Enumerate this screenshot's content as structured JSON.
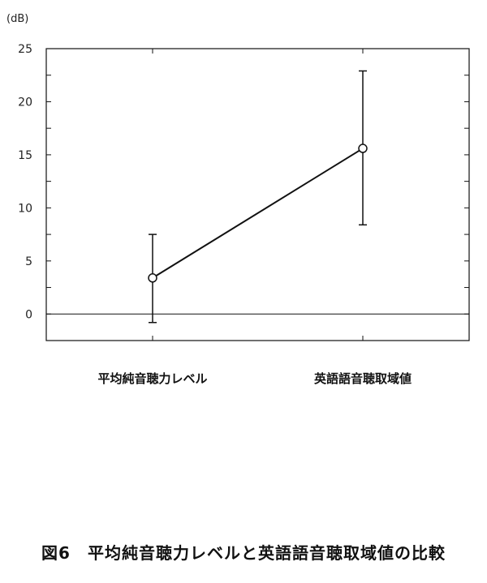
{
  "chart_data": {
    "type": "line",
    "unit_label": "(dB)",
    "categories": [
      "平均純音聴力レベル",
      "英語語音聴取域値"
    ],
    "values": [
      3.4,
      15.6
    ],
    "error_low": [
      -0.8,
      8.4
    ],
    "error_high": [
      7.5,
      22.9
    ],
    "yticks": [
      0,
      5,
      10,
      15,
      20,
      25
    ],
    "ylim": [
      -2.5,
      25
    ],
    "grid": false,
    "legend": "none"
  },
  "caption": "図6　平均純音聴力レベルと英語語音聴取域値の比較"
}
